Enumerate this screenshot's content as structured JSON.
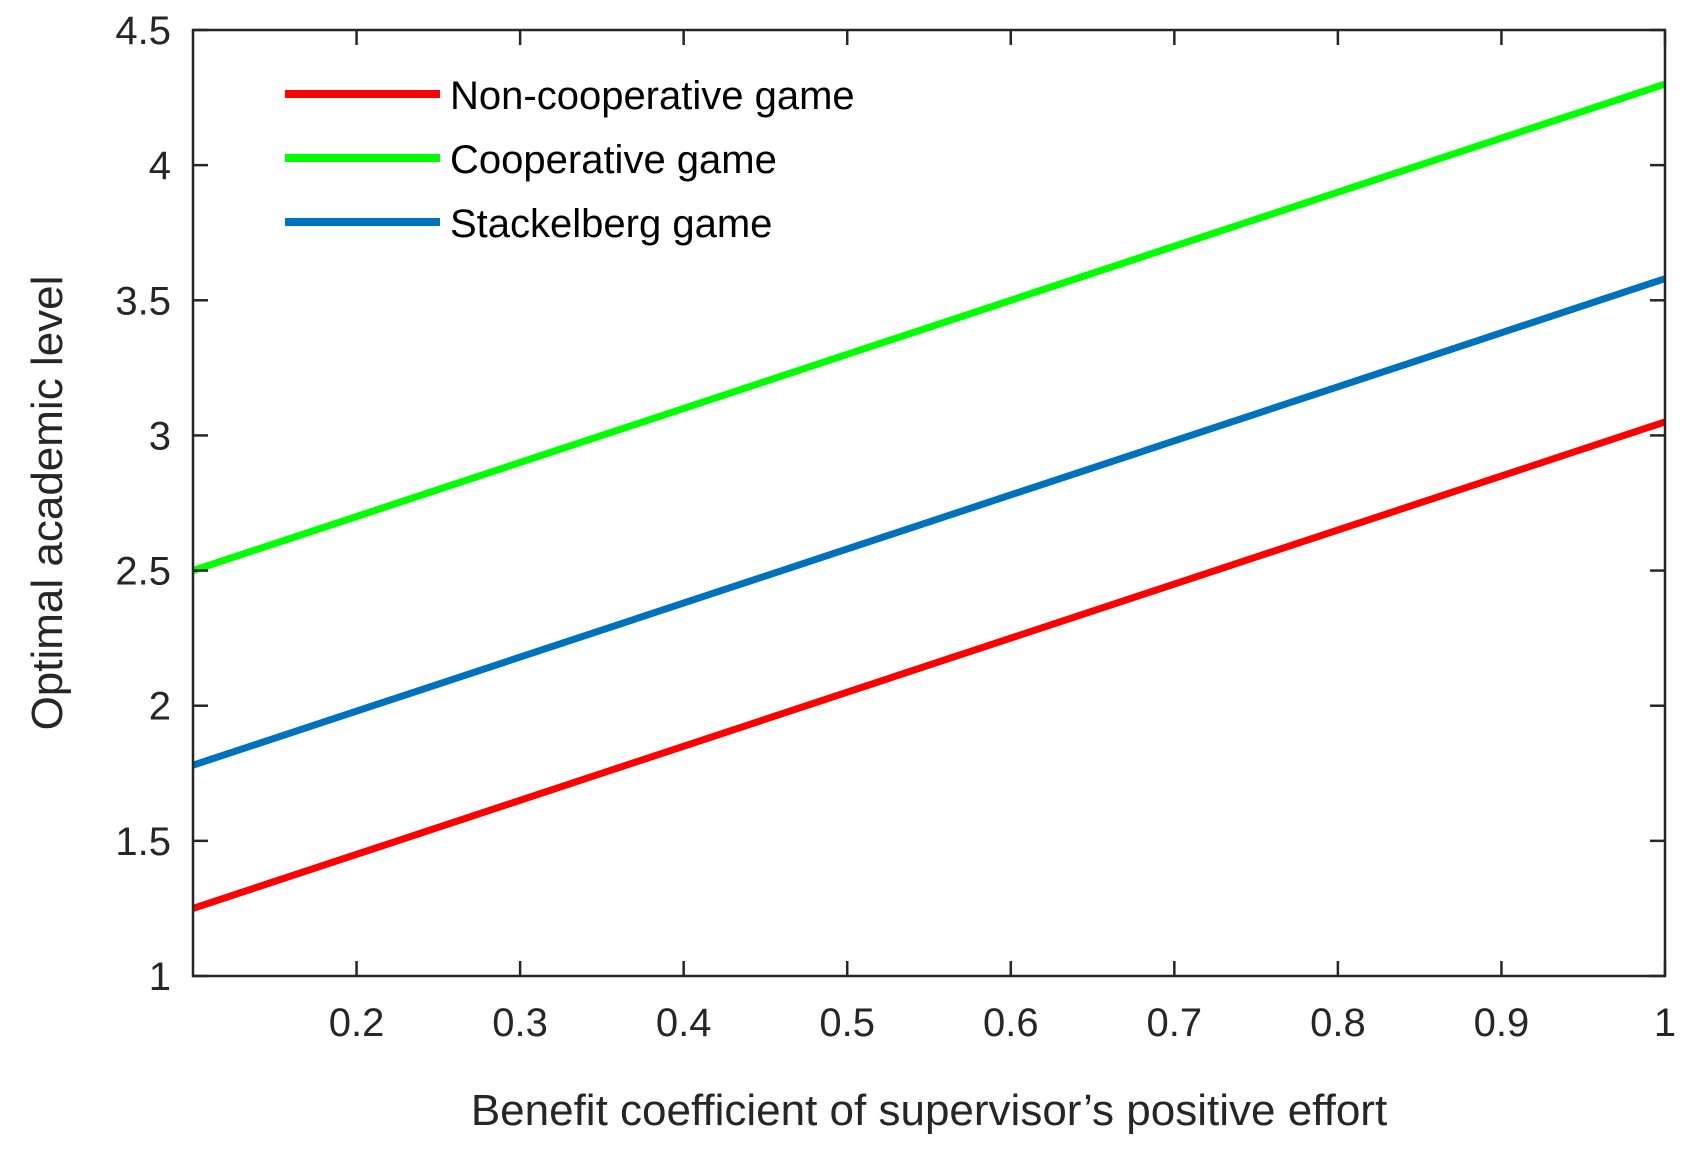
{
  "chart_data": {
    "type": "line",
    "title": "",
    "xlabel": "Benefit coefficient of supervisor’s positive effort",
    "ylabel": "Optimal academic level",
    "xlim": [
      0.1,
      1.0
    ],
    "ylim": [
      1,
      4.5
    ],
    "xticks": [
      0.2,
      0.3,
      0.4,
      0.5,
      0.6,
      0.7,
      0.8,
      0.9,
      1.0
    ],
    "xtick_labels": [
      "0.2",
      "0.3",
      "0.4",
      "0.5",
      "0.6",
      "0.7",
      "0.8",
      "0.9",
      "1"
    ],
    "yticks": [
      1,
      1.5,
      2,
      2.5,
      3,
      3.5,
      4,
      4.5
    ],
    "ytick_labels": [
      "1",
      "1.5",
      "2",
      "2.5",
      "3",
      "3.5",
      "4",
      "4.5"
    ],
    "grid": false,
    "legend_position": "top-left",
    "series": [
      {
        "name": "Non-cooperative game",
        "color": "#ff0000",
        "x": [
          0.1,
          1.0
        ],
        "y": [
          1.25,
          3.05
        ]
      },
      {
        "name": "Cooperative game",
        "color": "#00ff00",
        "x": [
          0.1,
          1.0
        ],
        "y": [
          2.5,
          4.3
        ]
      },
      {
        "name": "Stackelberg game",
        "color": "#0072bd",
        "x": [
          0.1,
          1.0
        ],
        "y": [
          1.78,
          3.58
        ]
      }
    ]
  }
}
